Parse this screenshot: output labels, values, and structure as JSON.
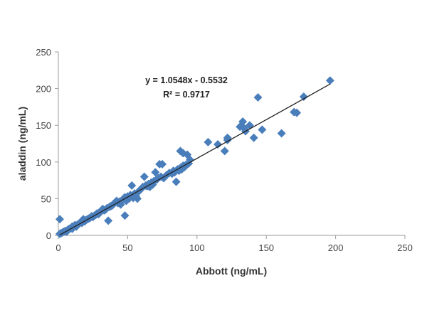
{
  "chart_data": {
    "type": "scatter",
    "title": "",
    "xlabel": "Abbott (ng/mL)",
    "ylabel": "aladdin (ng/mL)",
    "xlim": [
      0,
      250
    ],
    "ylim": [
      0,
      250
    ],
    "xticks": [
      "0",
      "50",
      "100",
      "150",
      "200",
      "250"
    ],
    "yticks": [
      "0",
      "50",
      "100",
      "150",
      "200",
      "250"
    ],
    "grid": false,
    "marker_color": "#4a7ebb",
    "trendline": {
      "slope": 1.0548,
      "intercept": -0.5532,
      "x_range": [
        1,
        196
      ],
      "color": "#222222"
    },
    "annotations": {
      "equation": "y = 1.0548x - 0.5532",
      "r_squared": "R² = 0.9717"
    },
    "points": [
      [
        1,
        22
      ],
      [
        1,
        2
      ],
      [
        2,
        3
      ],
      [
        3,
        4
      ],
      [
        4,
        5
      ],
      [
        5,
        6
      ],
      [
        6,
        5
      ],
      [
        7,
        8
      ],
      [
        8,
        9
      ],
      [
        9,
        10
      ],
      [
        10,
        12
      ],
      [
        10,
        9
      ],
      [
        11,
        11
      ],
      [
        12,
        14
      ],
      [
        13,
        12
      ],
      [
        14,
        15
      ],
      [
        15,
        16
      ],
      [
        16,
        18
      ],
      [
        17,
        17
      ],
      [
        18,
        20
      ],
      [
        18,
        22
      ],
      [
        19,
        19
      ],
      [
        20,
        21
      ],
      [
        21,
        22
      ],
      [
        22,
        23
      ],
      [
        23,
        24
      ],
      [
        24,
        26
      ],
      [
        25,
        25
      ],
      [
        26,
        27
      ],
      [
        27,
        28
      ],
      [
        28,
        30
      ],
      [
        29,
        29
      ],
      [
        30,
        32
      ],
      [
        31,
        33
      ],
      [
        32,
        36
      ],
      [
        33,
        34
      ],
      [
        34,
        35
      ],
      [
        35,
        37
      ],
      [
        36,
        20
      ],
      [
        37,
        39
      ],
      [
        38,
        40
      ],
      [
        39,
        41
      ],
      [
        40,
        43
      ],
      [
        41,
        45
      ],
      [
        42,
        47
      ],
      [
        43,
        44
      ],
      [
        44,
        46
      ],
      [
        45,
        42
      ],
      [
        46,
        48
      ],
      [
        47,
        50
      ],
      [
        48,
        27
      ],
      [
        48,
        52
      ],
      [
        49,
        47
      ],
      [
        50,
        53
      ],
      [
        51,
        50
      ],
      [
        52,
        55
      ],
      [
        53,
        68
      ],
      [
        54,
        51
      ],
      [
        55,
        57
      ],
      [
        56,
        53
      ],
      [
        57,
        50
      ],
      [
        58,
        60
      ],
      [
        59,
        62
      ],
      [
        60,
        64
      ],
      [
        61,
        66
      ],
      [
        62,
        80
      ],
      [
        63,
        68
      ],
      [
        64,
        67
      ],
      [
        65,
        70
      ],
      [
        66,
        66
      ],
      [
        67,
        72
      ],
      [
        68,
        69
      ],
      [
        69,
        74
      ],
      [
        70,
        86
      ],
      [
        71,
        76
      ],
      [
        72,
        78
      ],
      [
        73,
        97
      ],
      [
        74,
        80
      ],
      [
        75,
        97
      ],
      [
        76,
        78
      ],
      [
        78,
        82
      ],
      [
        80,
        85
      ],
      [
        82,
        84
      ],
      [
        83,
        88
      ],
      [
        84,
        86
      ],
      [
        85,
        73
      ],
      [
        86,
        90
      ],
      [
        87,
        88
      ],
      [
        88,
        115
      ],
      [
        88,
        92
      ],
      [
        89,
        90
      ],
      [
        90,
        112
      ],
      [
        90,
        95
      ],
      [
        91,
        93
      ],
      [
        92,
        96
      ],
      [
        93,
        110
      ],
      [
        94,
        98
      ],
      [
        95,
        103
      ],
      [
        108,
        127
      ],
      [
        115,
        124
      ],
      [
        120,
        115
      ],
      [
        122,
        130
      ],
      [
        122,
        133
      ],
      [
        131,
        148
      ],
      [
        133,
        155
      ],
      [
        134,
        146
      ],
      [
        135,
        142
      ],
      [
        138,
        150
      ],
      [
        141,
        133
      ],
      [
        144,
        188
      ],
      [
        147,
        144
      ],
      [
        161,
        139
      ],
      [
        170,
        168
      ],
      [
        172,
        167
      ],
      [
        177,
        189
      ],
      [
        196,
        211
      ]
    ]
  }
}
